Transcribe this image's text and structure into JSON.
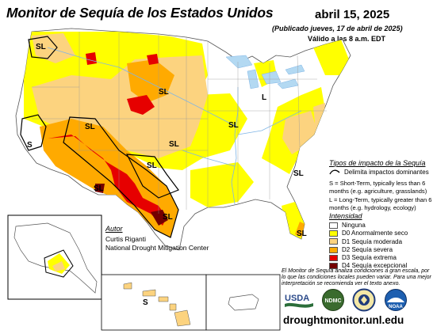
{
  "header": {
    "title": "Monitor de Sequía de los Estados Unidos",
    "date": "abril 15, 2025",
    "published": "(Publicado jueves, 17 de abril de 2025)",
    "valid": "Válido a las 8 a.m. EDT"
  },
  "map_labels": {
    "short_term": "S",
    "long_term": "L",
    "short_long": "SL"
  },
  "legend": {
    "impact_title": "Tipos de impacto de la Sequía",
    "impact_line_label": "Delimita impactos dominantes",
    "short_term_def": "S = Short-Term, typically less than 6 months (e.g. agriculture, grasslands)",
    "long_term_def": "L = Long-Term, typically greater than 6 months (e.g. hydrology, ecology)",
    "intensity_title": "Intensidad",
    "intensity": [
      {
        "label": "Ninguna",
        "color": "#ffffff"
      },
      {
        "label": "D0 Anormalmente seco",
        "color": "#ffff00"
      },
      {
        "label": "D1 Sequía moderada",
        "color": "#fcd37f"
      },
      {
        "label": "D2 Sequía severa",
        "color": "#ffaa00"
      },
      {
        "label": "D3 Sequía extrema",
        "color": "#e60000"
      },
      {
        "label": "D4 Sequía excepcional",
        "color": "#730000"
      }
    ]
  },
  "author": {
    "heading": "Autor",
    "name": "Curtis Riganti",
    "organization": "National Drought Mitigation Center"
  },
  "disclaimer": "El Monitor de Sequía analiza condiciones a gran escala, por lo que las condiciones locales pueden variar. Para una mejor interpretación se recomienda ver el texto anexo.",
  "logos": {
    "usda": "USDA",
    "ndmc": "NDMC",
    "commerce": "commerce-seal-icon",
    "noaa": "NOAA"
  },
  "footer": {
    "url": "droughtmonitor.unl.edu"
  },
  "colors": {
    "water": "#b3d9f2",
    "river": "#7fb5e6",
    "border": "#888888",
    "impact_line": "#000000"
  }
}
